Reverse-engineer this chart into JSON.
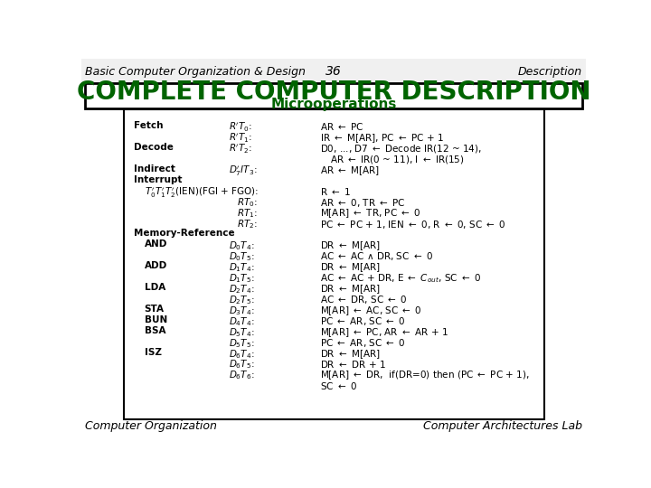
{
  "title_left": "Basic Computer Organization & Design",
  "title_center": "36",
  "title_right": "Description",
  "heading1": "COMPLETE COMPUTER DESCRIPTION",
  "heading2": "Microoperations",
  "footer_left": "Computer Organization",
  "footer_right": "Computer Architectures Lab",
  "bg_color": "#ffffff",
  "heading_color": "#006400",
  "text_color": "#000000",
  "header_text_color": "#000000"
}
